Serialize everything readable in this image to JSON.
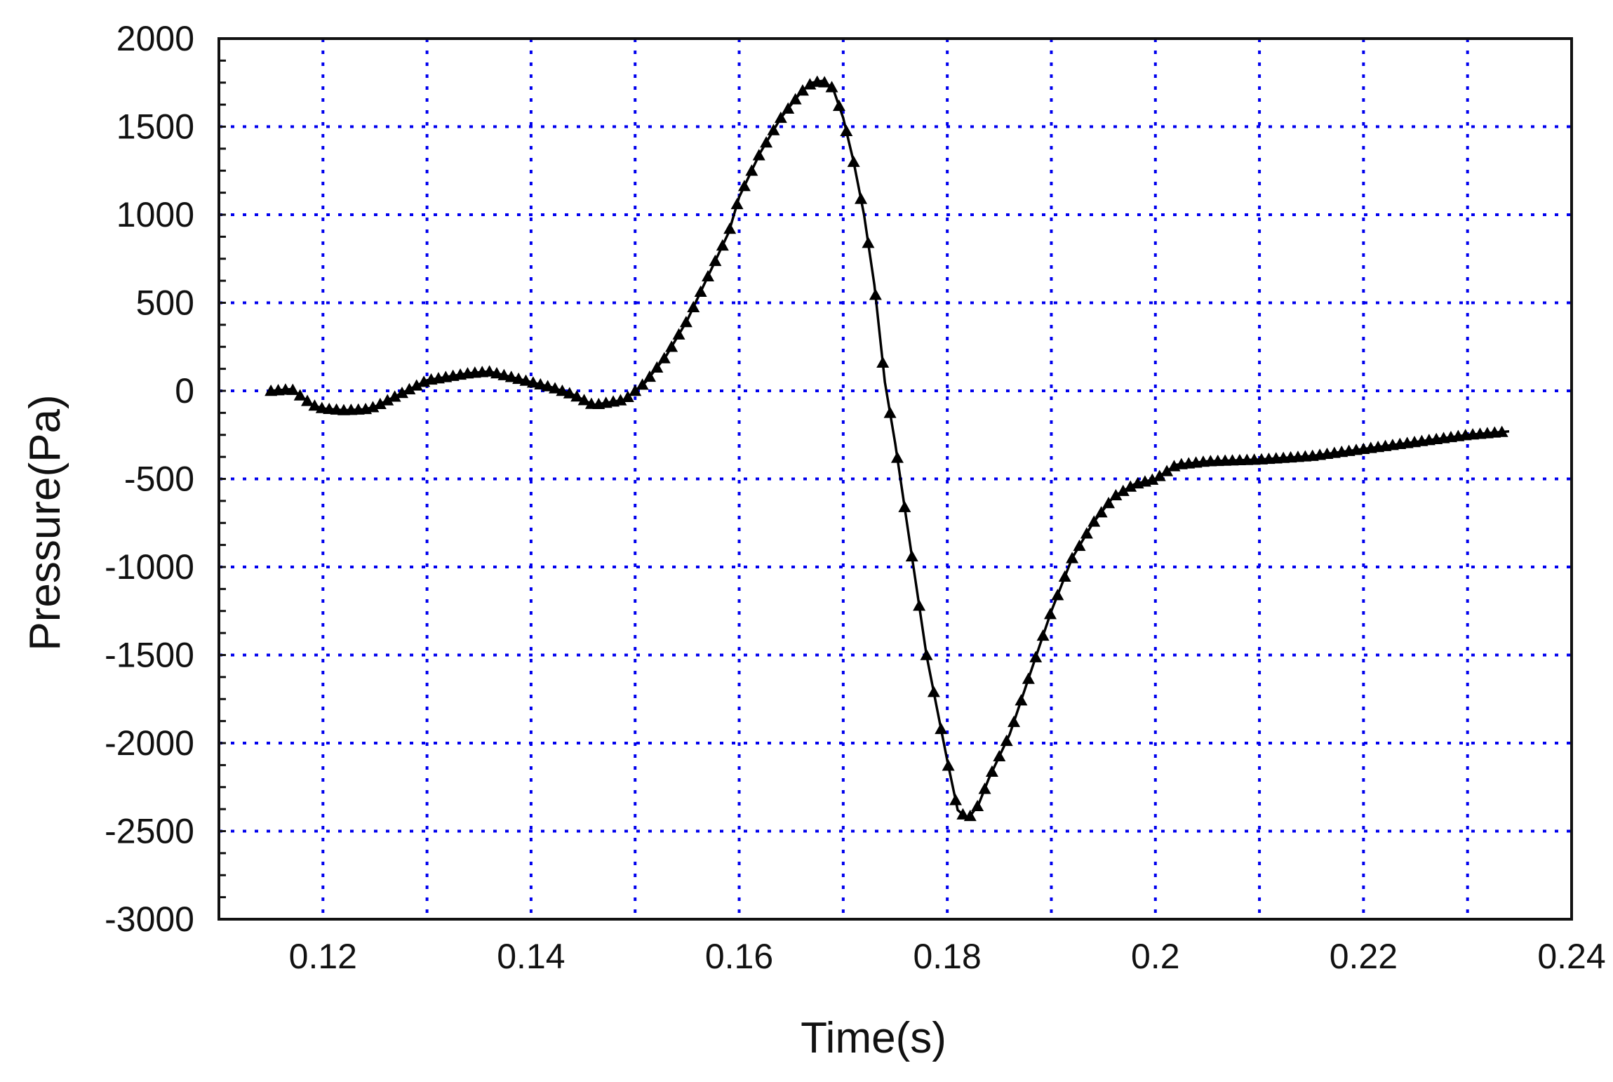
{
  "chart_data": {
    "type": "line",
    "title": "",
    "xlabel": "Time(s)",
    "ylabel": "Pressure(Pa)",
    "xlim": [
      0.11,
      0.24
    ],
    "ylim": [
      -3000,
      2000
    ],
    "x_ticks": [
      0.12,
      0.14,
      0.16,
      0.18,
      0.2,
      0.22,
      0.24
    ],
    "x_tick_labels": [
      "0.12",
      "0.14",
      "0.16",
      "0.18",
      "0.2",
      "0.22",
      "0.24"
    ],
    "y_ticks": [
      2000,
      1500,
      1000,
      500,
      0,
      -500,
      -1000,
      -1500,
      -2000,
      -2500,
      -3000
    ],
    "y_tick_labels": [
      "2000",
      "1500",
      "1000",
      "500",
      "0",
      "-500",
      "-1000",
      "-1500",
      "-2000",
      "-2500",
      "-3000"
    ],
    "x_grid": [
      0.12,
      0.13,
      0.14,
      0.15,
      0.16,
      0.17,
      0.18,
      0.19,
      0.2,
      0.21,
      0.22,
      0.23
    ],
    "y_grid": [
      1500,
      1000,
      500,
      0,
      -500,
      -1000,
      -1500,
      -2000,
      -2500
    ],
    "grid": true,
    "legend": "none",
    "colors": {
      "line": "#000000",
      "grid": "#0000ee",
      "axes": "#111111"
    },
    "marker": "triangle",
    "series": [
      {
        "x": [
          0.115,
          0.117,
          0.119,
          0.12,
          0.122,
          0.124,
          0.125,
          0.127,
          0.129,
          0.13,
          0.132,
          0.134,
          0.136,
          0.138,
          0.14,
          0.142,
          0.144,
          0.146,
          0.147,
          0.149,
          0.151,
          0.153,
          0.155,
          0.157,
          0.159,
          0.16,
          0.162,
          0.164,
          0.166,
          0.167,
          0.168,
          0.169,
          0.17,
          0.171,
          0.172,
          0.173,
          0.174,
          0.175,
          0.176,
          0.177,
          0.178,
          0.179,
          0.18,
          0.181,
          0.182,
          0.183,
          0.184,
          0.186,
          0.188,
          0.19,
          0.192,
          0.194,
          0.196,
          0.198,
          0.2,
          0.202,
          0.205,
          0.21,
          0.215,
          0.22,
          0.225,
          0.23,
          0.234
        ],
        "y": [
          0,
          10,
          -80,
          -100,
          -110,
          -105,
          -90,
          -30,
          30,
          60,
          80,
          100,
          110,
          80,
          50,
          20,
          -20,
          -80,
          -70,
          -50,
          50,
          200,
          400,
          650,
          900,
          1100,
          1350,
          1550,
          1700,
          1750,
          1760,
          1720,
          1550,
          1300,
          1000,
          600,
          50,
          -300,
          -700,
          -1100,
          -1500,
          -1800,
          -2100,
          -2380,
          -2430,
          -2350,
          -2200,
          -1950,
          -1600,
          -1250,
          -950,
          -750,
          -600,
          -530,
          -500,
          -420,
          -400,
          -390,
          -370,
          -330,
          -290,
          -250,
          -230
        ]
      }
    ]
  }
}
